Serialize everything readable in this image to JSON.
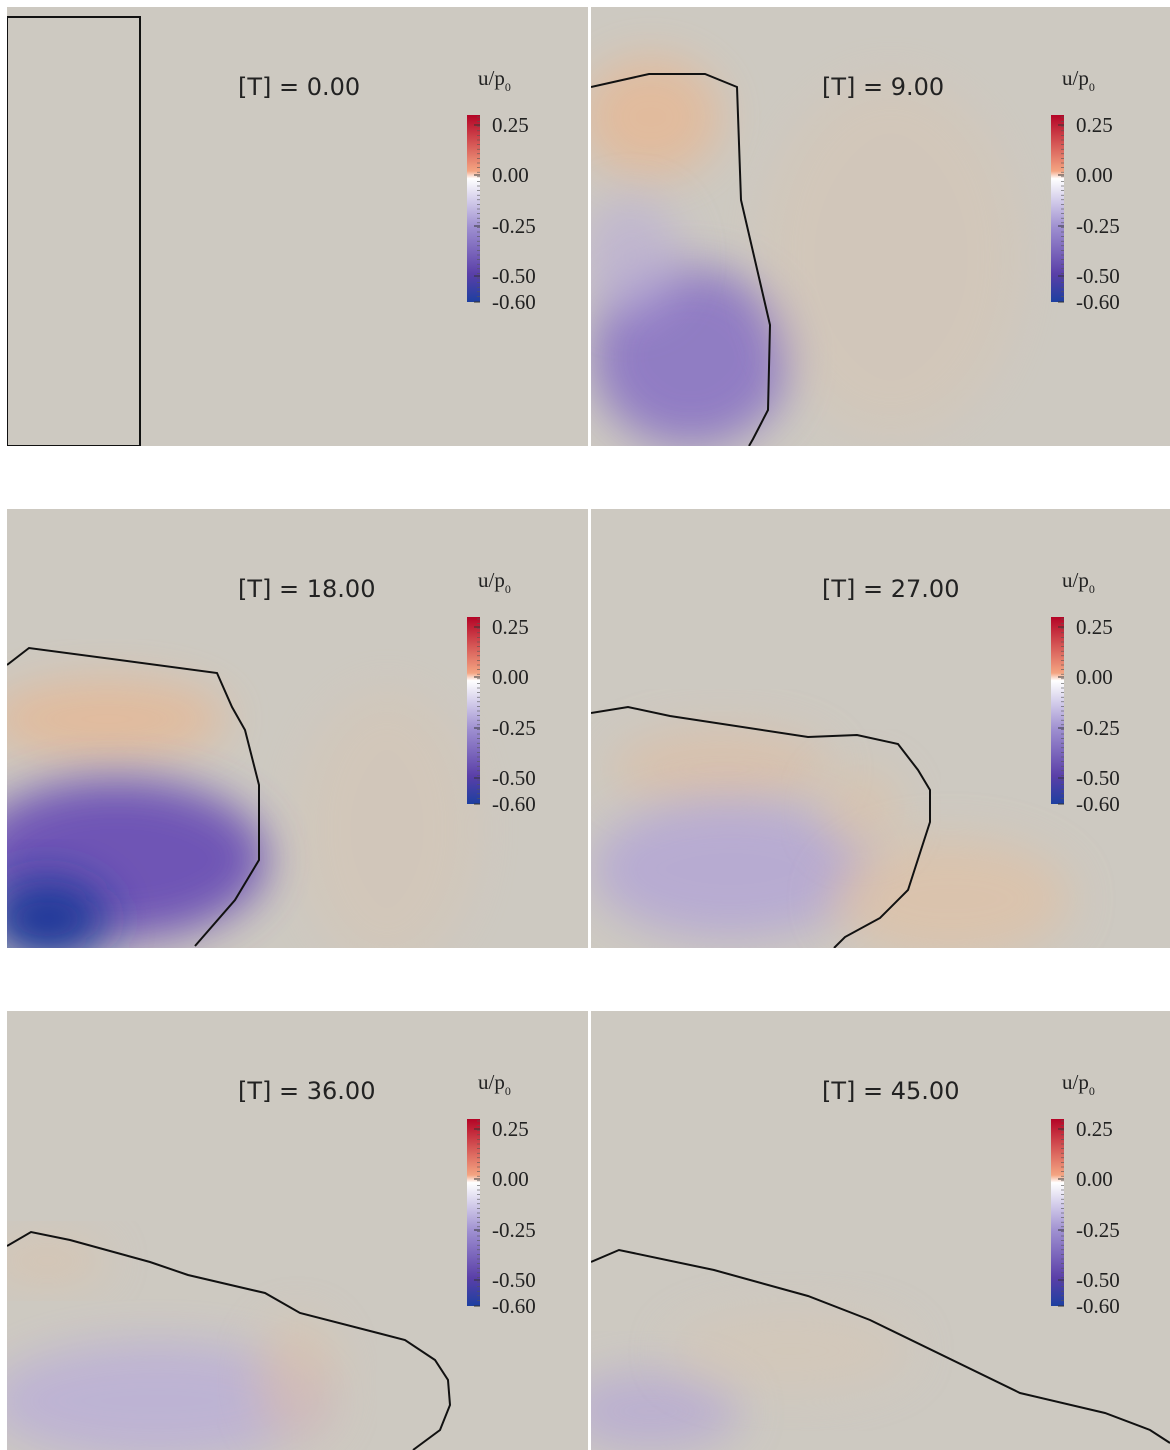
{
  "panels": [
    {
      "time_label": "[T] = 0.00",
      "colorbar": {
        "title": "u/p",
        "title_subscript": "0",
        "ticks": [
          "0.25",
          "0.00",
          "-0.25",
          "-0.50",
          "-0.60"
        ]
      }
    },
    {
      "time_label": "[T] = 9.00",
      "colorbar": {
        "title": "u/p",
        "title_subscript": "0",
        "ticks": [
          "0.25",
          "0.00",
          "-0.25",
          "-0.50",
          "-0.60"
        ]
      }
    },
    {
      "time_label": "[T] = 18.00",
      "colorbar": {
        "title": "u/p",
        "title_subscript": "0",
        "ticks": [
          "0.25",
          "0.00",
          "-0.25",
          "-0.50",
          "-0.60"
        ]
      }
    },
    {
      "time_label": "[T] = 27.00",
      "colorbar": {
        "title": "u/p",
        "title_subscript": "0",
        "ticks": [
          "0.25",
          "0.00",
          "-0.25",
          "-0.50",
          "-0.60"
        ]
      }
    },
    {
      "time_label": "[T] = 36.00",
      "colorbar": {
        "title": "u/p",
        "title_subscript": "0",
        "ticks": [
          "0.25",
          "0.00",
          "-0.25",
          "-0.50",
          "-0.60"
        ]
      }
    },
    {
      "time_label": "[T] = 45.00",
      "colorbar": {
        "title": "u/p",
        "title_subscript": "0",
        "ticks": [
          "0.25",
          "0.00",
          "-0.25",
          "-0.50",
          "-0.60"
        ]
      }
    }
  ]
}
